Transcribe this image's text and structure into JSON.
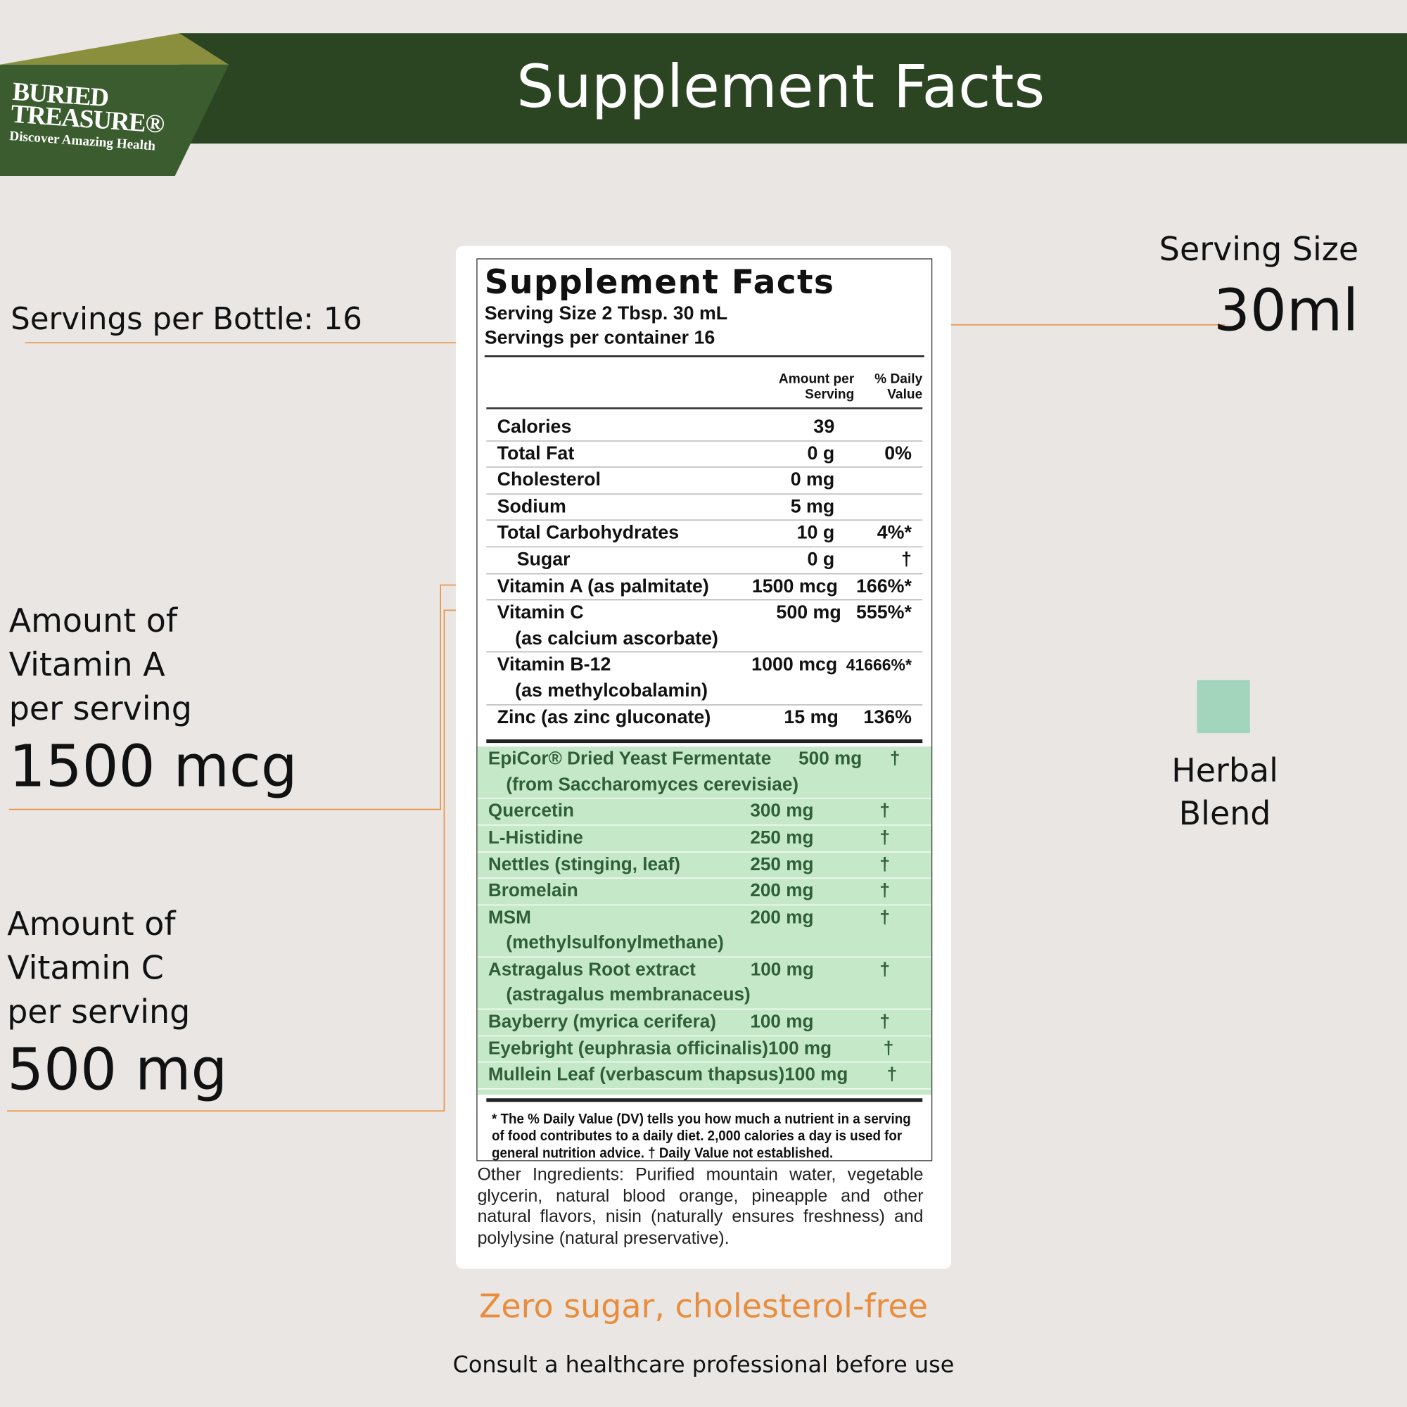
{
  "header": {
    "logo_line1": "BURIED",
    "logo_line2": "TREASURE®",
    "logo_tagline": "Discover Amazing Health",
    "title": "Supplement Facts"
  },
  "callouts": {
    "servings_per_bottle": "Servings per Bottle: 16",
    "serving_size_label": "Serving Size",
    "serving_size_value": "30ml",
    "vitamin_a_label": "Amount of\nVitamin A\nper serving",
    "vitamin_a_value": "1500 mcg",
    "vitamin_c_label": "Amount of\nVitamin C\nper serving",
    "vitamin_c_value": "500 mg",
    "legend": "Herbal\nBlend"
  },
  "label": {
    "title": "Supplement Facts",
    "serving_size": "Serving Size 2 Tbsp. 30 mL",
    "servings_per_container": "Servings per container 16",
    "columns": [
      "Amount per\nServing",
      "% Daily\nValue"
    ],
    "nutrients": [
      {
        "name": "Calories",
        "amount": "39"
      },
      {
        "name": "Total Fat",
        "amount": "0 g",
        "dv": "0%"
      },
      {
        "name": "Cholesterol",
        "amount": "0 mg"
      },
      {
        "name": "Sodium",
        "amount": "5 mg"
      },
      {
        "name": "Total Carbohydrates",
        "amount": "10 g",
        "dv": "4%*"
      },
      {
        "name": "Sugar",
        "amount": "0 g",
        "dv": "†",
        "indent": true
      },
      {
        "name": "Vitamin A (as palmitate)",
        "amount": "1500 mcg",
        "dv": "166%*"
      },
      {
        "name": "Vitamin C",
        "sub": "(as calcium ascorbate)",
        "amount": "500 mg",
        "dv": "555%*"
      },
      {
        "name": "Vitamin B-12",
        "sub": "(as methylcobalamin)",
        "amount": "1000 mcg",
        "dv": "41666%*"
      },
      {
        "name": "Zinc (as  zinc gluconate)",
        "amount": "15 mg",
        "dv": "136%"
      }
    ],
    "blend": [
      {
        "name": "EpiCor® Dried Yeast Fermentate",
        "sub": "(from Saccharomyces cerevisiae)",
        "amount": "500 mg",
        "dv": "†"
      },
      {
        "name": "Quercetin",
        "amount": "300 mg",
        "dv": "†"
      },
      {
        "name": "L-Histidine",
        "amount": "250 mg",
        "dv": "†"
      },
      {
        "name": "Nettles (stinging, leaf)",
        "amount": "250 mg",
        "dv": "†"
      },
      {
        "name": "Bromelain",
        "amount": "200 mg",
        "dv": "†"
      },
      {
        "name": "MSM",
        "sub": "(methylsulfonylmethane)",
        "amount": "200 mg",
        "dv": "†"
      },
      {
        "name": "Astragalus Root extract",
        "sub": "(astragalus membranaceus)",
        "amount": "100 mg",
        "dv": "†"
      },
      {
        "name": "Bayberry (myrica cerifera)",
        "amount": "100 mg",
        "dv": "†"
      },
      {
        "name": "Eyebright (euphrasia officinalis)",
        "amount": "100 mg",
        "dv": "†"
      },
      {
        "name": "Mullein Leaf (verbascum thapsus)",
        "amount": "100 mg",
        "dv": "†"
      }
    ],
    "footnote": "* The % Daily Value (DV) tells you how much a nutrient in a serving of food contributes to a daily diet. 2,000 calories a day is used for general nutrition advice.   † Daily Value not established.",
    "other_ingredients": "Other Ingredients:  Purified mountain water, vegetable glycerin, natural blood orange, pineapple and other natural flavors, nisin (naturally ensures freshness) and polylysine (natural preservative)."
  },
  "footer": {
    "tagline": "Zero sugar, cholesterol-free",
    "note": "Consult a healthcare professional before use"
  }
}
